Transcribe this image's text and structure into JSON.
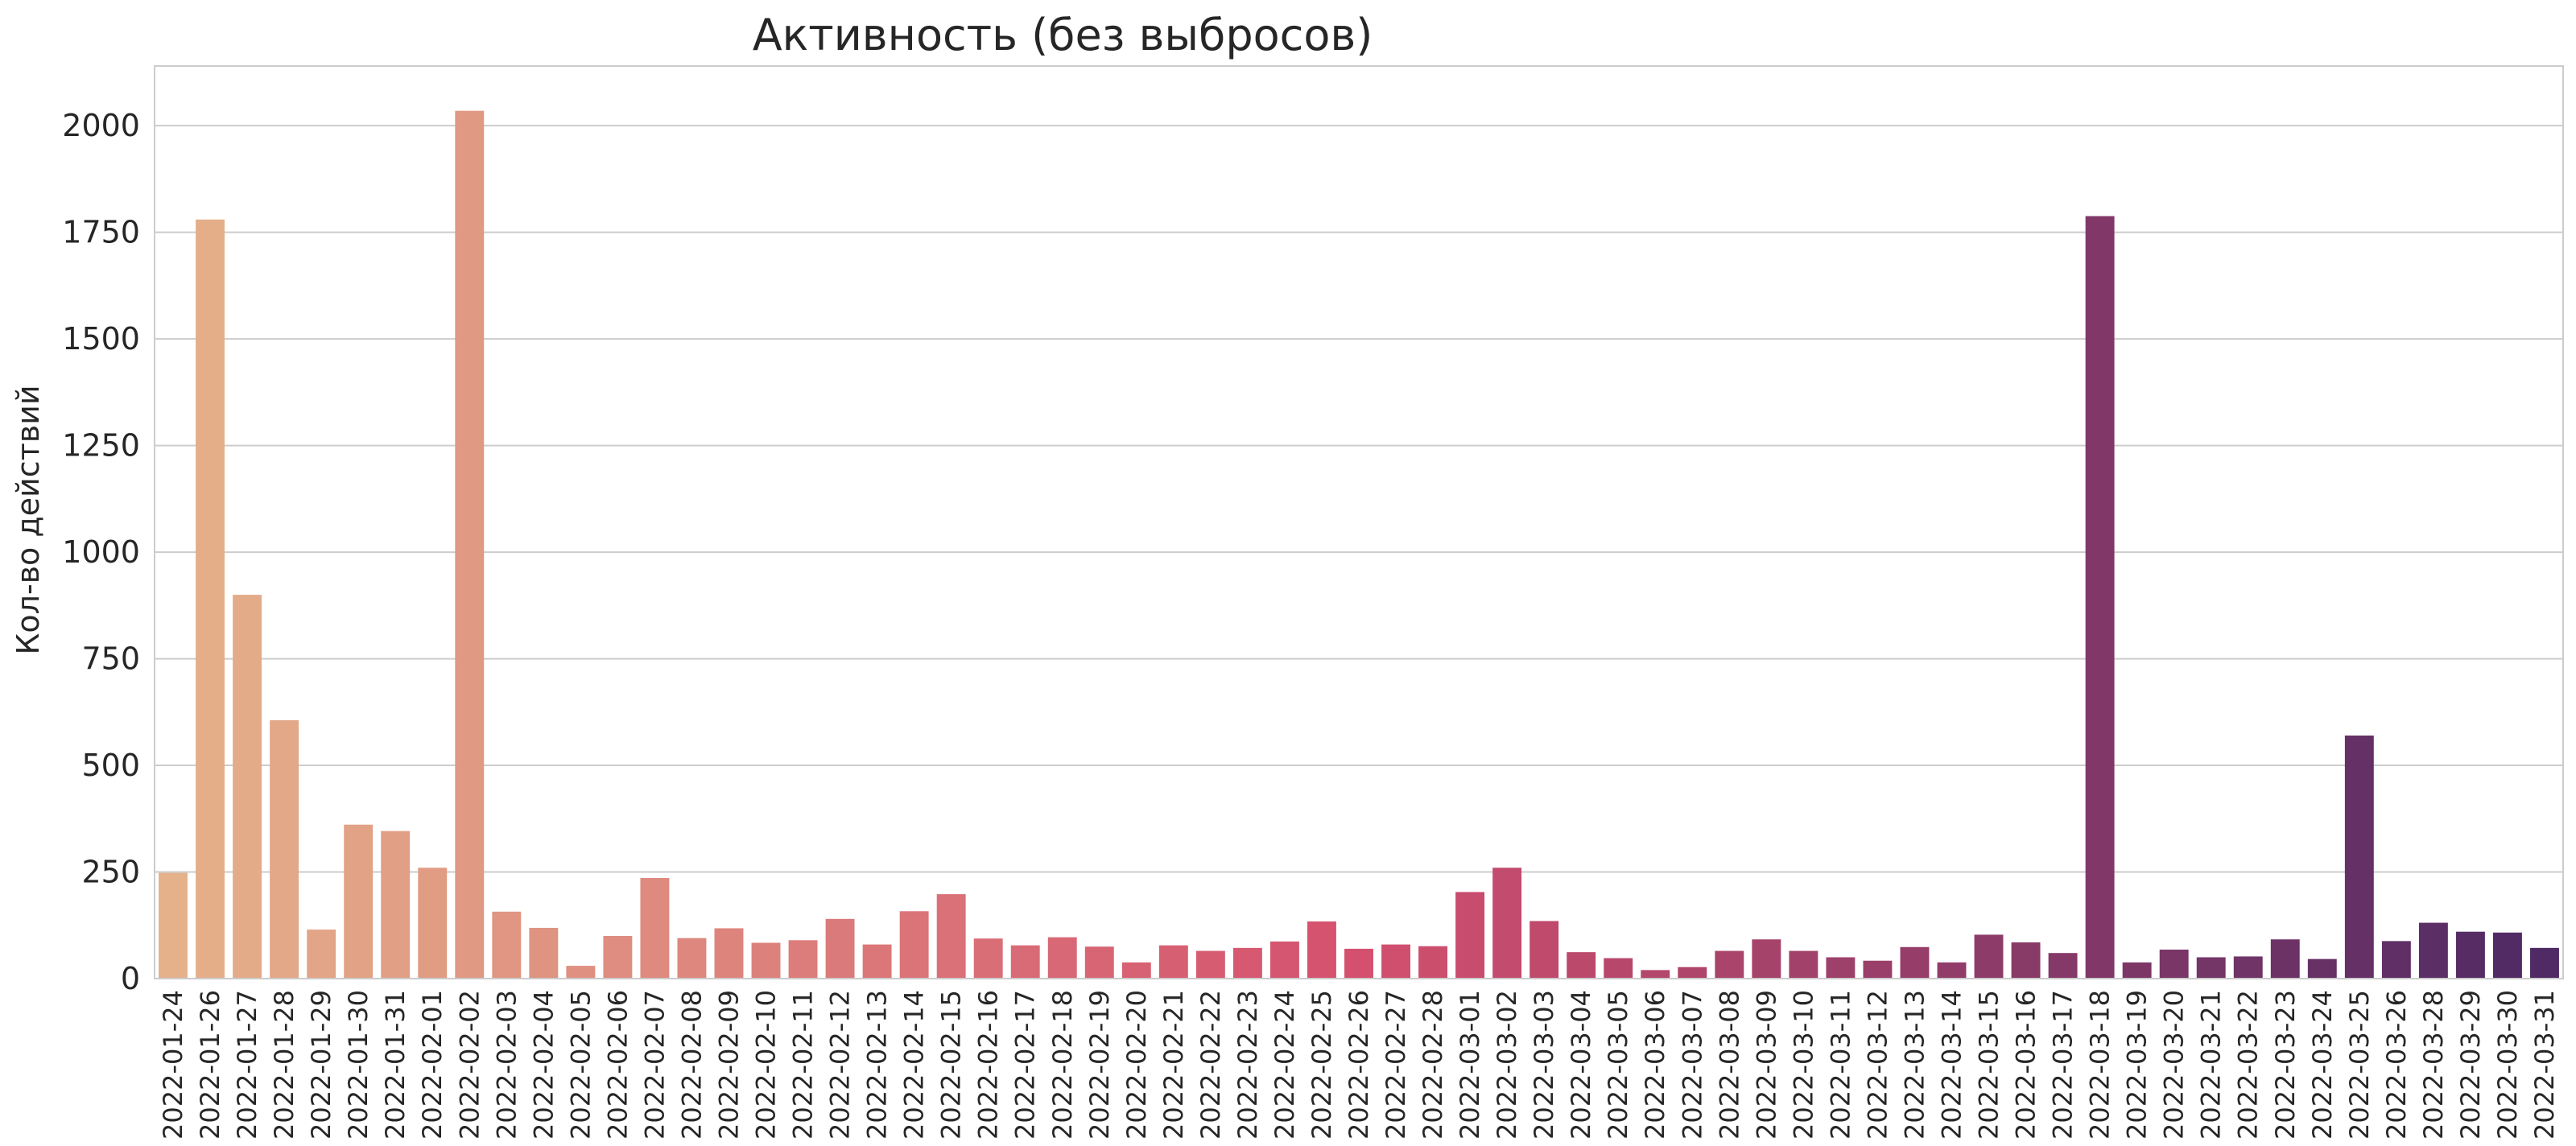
{
  "chart_data": {
    "type": "bar",
    "title": "Активность (без выбросов)",
    "xlabel": "",
    "ylabel": "Кол-во действий",
    "ylim": [
      0,
      2140
    ],
    "yticks": [
      0,
      250,
      500,
      750,
      1000,
      1250,
      1500,
      1750,
      2000
    ],
    "grid": true,
    "legend": "none",
    "palette": "flare",
    "color_start": "#e4b18a",
    "color_end": "#4f2a64",
    "categories": [
      "2022-01-24",
      "2022-01-26",
      "2022-01-27",
      "2022-01-28",
      "2022-01-29",
      "2022-01-30",
      "2022-01-31",
      "2022-02-01",
      "2022-02-02",
      "2022-02-03",
      "2022-02-04",
      "2022-02-05",
      "2022-02-06",
      "2022-02-07",
      "2022-02-08",
      "2022-02-09",
      "2022-02-10",
      "2022-02-11",
      "2022-02-12",
      "2022-02-13",
      "2022-02-14",
      "2022-02-15",
      "2022-02-16",
      "2022-02-17",
      "2022-02-18",
      "2022-02-19",
      "2022-02-20",
      "2022-02-21",
      "2022-02-22",
      "2022-02-23",
      "2022-02-24",
      "2022-02-25",
      "2022-02-26",
      "2022-02-27",
      "2022-02-28",
      "2022-03-01",
      "2022-03-02",
      "2022-03-03",
      "2022-03-04",
      "2022-03-05",
      "2022-03-06",
      "2022-03-07",
      "2022-03-08",
      "2022-03-09",
      "2022-03-10",
      "2022-03-11",
      "2022-03-12",
      "2022-03-13",
      "2022-03-14",
      "2022-03-15",
      "2022-03-16",
      "2022-03-17",
      "2022-03-18",
      "2022-03-19",
      "2022-03-20",
      "2022-03-21",
      "2022-03-22",
      "2022-03-23",
      "2022-03-24",
      "2022-03-25",
      "2022-03-26",
      "2022-03-28",
      "2022-03-29",
      "2022-03-30",
      "2022-03-31"
    ],
    "values": [
      248,
      1780,
      900,
      606,
      115,
      361,
      346,
      260,
      2035,
      157,
      119,
      30,
      100,
      236,
      95,
      118,
      84,
      90,
      140,
      80,
      158,
      198,
      94,
      78,
      97,
      75,
      38,
      78,
      65,
      72,
      87,
      134,
      70,
      80,
      76,
      203,
      260,
      135,
      62,
      48,
      20,
      27,
      65,
      92,
      65,
      50,
      42,
      74,
      38,
      103,
      85,
      60,
      1788,
      38,
      68,
      50,
      52,
      92,
      46,
      570,
      88,
      131,
      110,
      108,
      72
    ]
  }
}
